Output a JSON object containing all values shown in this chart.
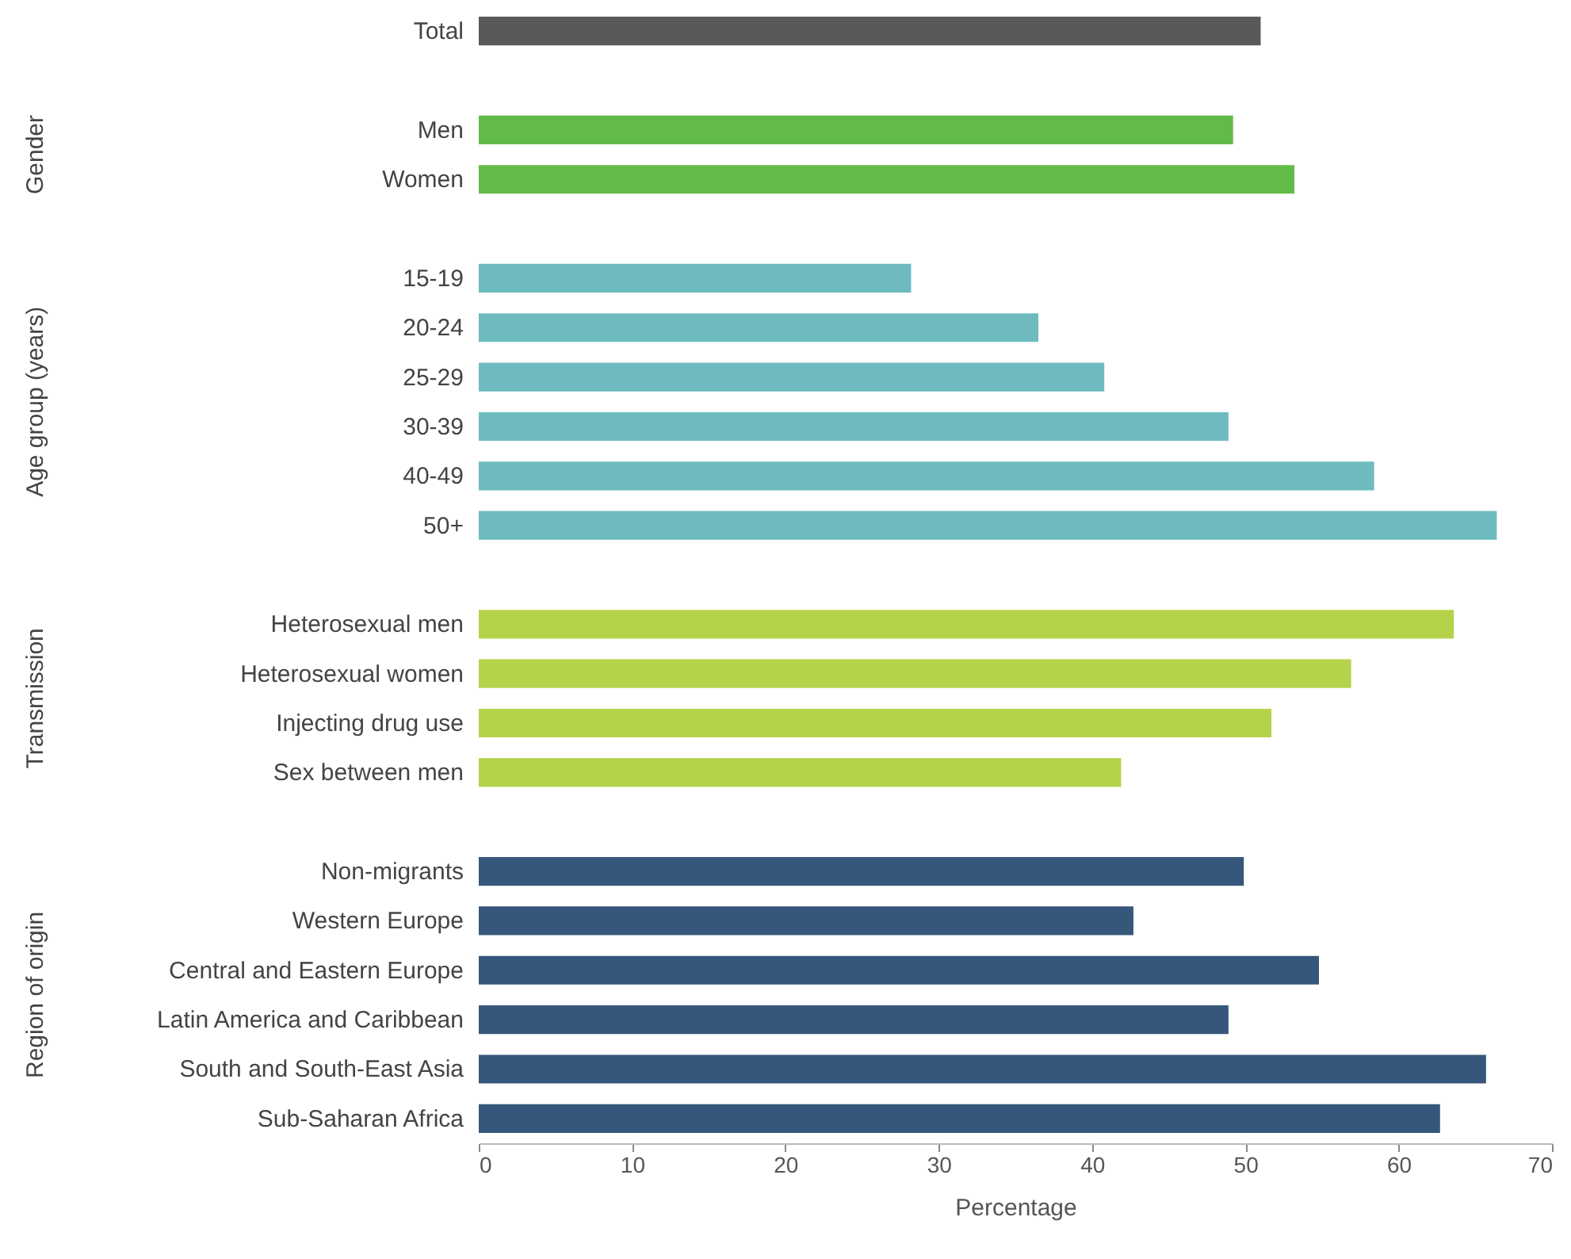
{
  "chart_data": {
    "type": "bar",
    "orientation": "horizontal",
    "xlabel": "Percentage",
    "categories": [
      "Total",
      null,
      "Men",
      "Women",
      null,
      "15-19",
      "20-24",
      "25-29",
      "30-39",
      "40-49",
      "50+",
      null,
      "Heterosexual men",
      "Heterosexual women",
      "Injecting drug use",
      "Sex between men",
      null,
      "Non-migrants",
      "Western Europe",
      "Central and Eastern Europe",
      "Latin America and Caribbean",
      "South and South-East Asia",
      "Sub-Saharan Africa"
    ],
    "values": [
      51.0,
      null,
      49.2,
      53.2,
      null,
      28.2,
      36.5,
      40.8,
      48.9,
      58.4,
      66.4,
      null,
      63.6,
      56.9,
      51.7,
      41.9,
      null,
      49.9,
      42.7,
      54.8,
      48.9,
      65.7,
      62.7
    ],
    "colors": [
      "#58595b",
      null,
      "#62bb46",
      "#62bb46",
      null,
      "#6dbbbf",
      "#6dbbbf",
      "#6dbbbf",
      "#6dbbbf",
      "#6dbbbf",
      "#6dbbbf",
      null,
      "#b5d34a",
      "#b5d34a",
      "#b5d34a",
      "#b5d34a",
      null,
      "#36577b",
      "#36577b",
      "#36577b",
      "#36577b",
      "#36577b",
      "#36577b"
    ],
    "xlim": [
      0,
      70
    ],
    "xticks": [
      0,
      10,
      20,
      30,
      40,
      50,
      60,
      70
    ],
    "annotations": [
      "Gender",
      "Age group (years)",
      "Transmission",
      "Region of origin"
    ],
    "grid": false
  }
}
